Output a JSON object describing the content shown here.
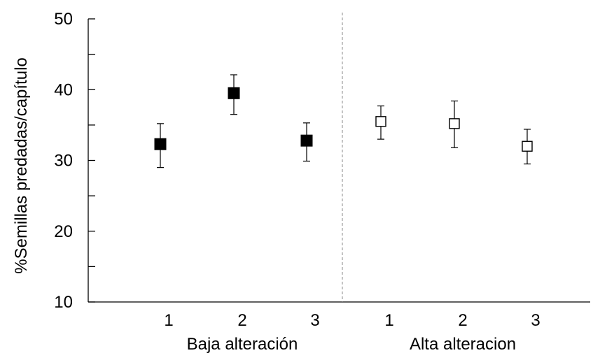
{
  "chart_data": {
    "type": "scatter",
    "ylabel": "%Semillas predadas/capítulo",
    "ylim": [
      10,
      50
    ],
    "yticks": [
      "10",
      "20",
      "30",
      "40",
      "50"
    ],
    "grid": false,
    "groups": [
      {
        "label": "Baja alteración",
        "categories": [
          "1",
          "2",
          "3"
        ],
        "marker": "filled-square",
        "values": [
          32.3,
          39.5,
          32.8
        ],
        "error_low": [
          29.0,
          36.5,
          29.9
        ],
        "error_high": [
          35.2,
          42.1,
          35.3
        ]
      },
      {
        "label": "Alta alteracion",
        "categories": [
          "1",
          "2",
          "3"
        ],
        "marker": "open-square",
        "values": [
          35.5,
          35.2,
          32.0
        ],
        "error_low": [
          33.0,
          31.8,
          29.5
        ],
        "error_high": [
          37.7,
          38.4,
          34.4
        ]
      }
    ],
    "divider": "dashed"
  }
}
